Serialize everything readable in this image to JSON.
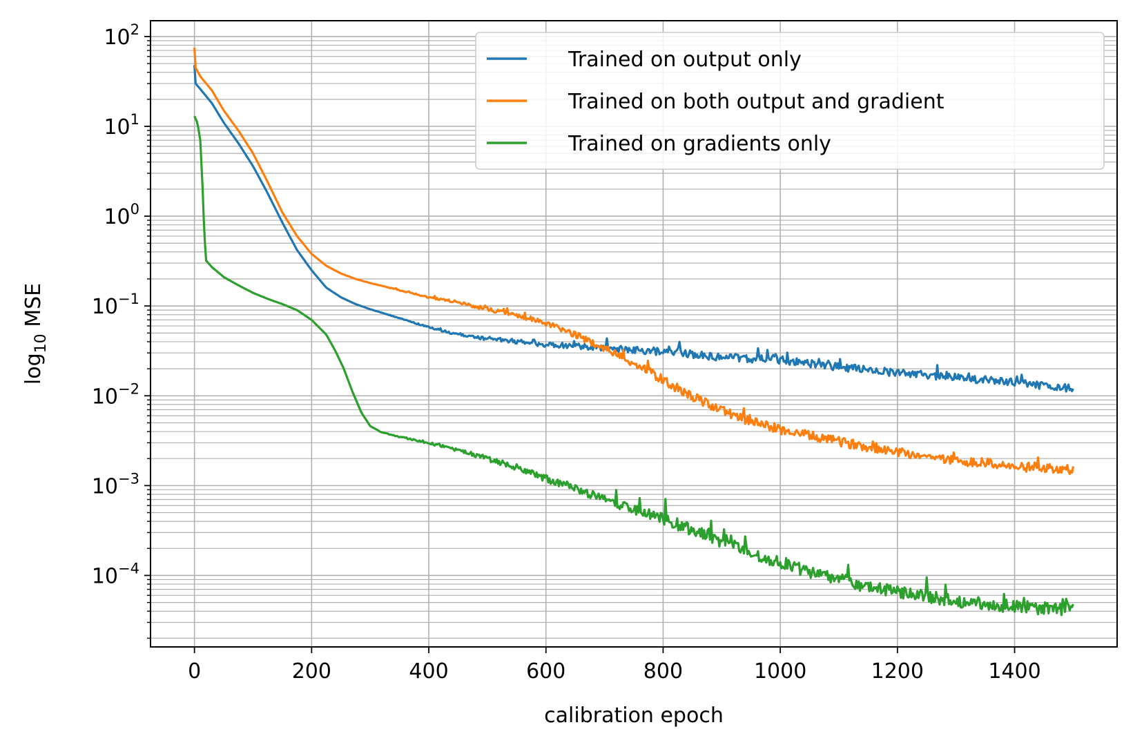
{
  "chart_data": {
    "type": "line",
    "title": "",
    "xlabel": "calibration epoch",
    "ylabel": "log10 MSE",
    "ylabel_parts": {
      "base": "log",
      "subscript": "10",
      "rest": " MSE"
    },
    "y_scale": "log",
    "xlim": [
      -75,
      1575
    ],
    "ylim": [
      1.6e-05,
      150
    ],
    "x_ticks": [
      0,
      200,
      400,
      600,
      800,
      1000,
      1200,
      1400
    ],
    "x_tick_labels": [
      "0",
      "200",
      "400",
      "600",
      "800",
      "1000",
      "1200",
      "1400"
    ],
    "y_ticks": [
      {
        "value": 100,
        "base": "10",
        "exp": "2"
      },
      {
        "value": 10,
        "base": "10",
        "exp": "1"
      },
      {
        "value": 1,
        "base": "10",
        "exp": "0"
      },
      {
        "value": 0.1,
        "base": "10",
        "exp": "−1"
      },
      {
        "value": 0.01,
        "base": "10",
        "exp": "−2"
      },
      {
        "value": 0.001,
        "base": "10",
        "exp": "−3"
      },
      {
        "value": 0.0001,
        "base": "10",
        "exp": "−4"
      }
    ],
    "grid": "major and minor",
    "legend_position": "upper right",
    "series": [
      {
        "name": "Trained on output only",
        "color": "#1f77b4",
        "noise": 0.1,
        "points": [
          [
            0,
            48
          ],
          [
            2,
            30
          ],
          [
            10,
            26
          ],
          [
            30,
            18
          ],
          [
            50,
            11
          ],
          [
            75,
            6.5
          ],
          [
            100,
            3.6
          ],
          [
            125,
            1.8
          ],
          [
            150,
            0.85
          ],
          [
            175,
            0.42
          ],
          [
            200,
            0.25
          ],
          [
            225,
            0.16
          ],
          [
            250,
            0.125
          ],
          [
            275,
            0.105
          ],
          [
            300,
            0.092
          ],
          [
            350,
            0.073
          ],
          [
            400,
            0.058
          ],
          [
            450,
            0.048
          ],
          [
            500,
            0.043
          ],
          [
            550,
            0.04
          ],
          [
            600,
            0.037
          ],
          [
            650,
            0.036
          ],
          [
            700,
            0.034
          ],
          [
            800,
            0.031
          ],
          [
            900,
            0.027
          ],
          [
            1000,
            0.025
          ],
          [
            1100,
            0.021
          ],
          [
            1200,
            0.018
          ],
          [
            1300,
            0.016
          ],
          [
            1400,
            0.014
          ],
          [
            1500,
            0.012
          ]
        ]
      },
      {
        "name": "Trained on both output and gradient",
        "color": "#ff7f0e",
        "noise": 0.12,
        "points": [
          [
            0,
            75
          ],
          [
            2,
            45
          ],
          [
            10,
            36
          ],
          [
            30,
            25
          ],
          [
            50,
            15
          ],
          [
            75,
            9
          ],
          [
            100,
            5
          ],
          [
            125,
            2.4
          ],
          [
            150,
            1.1
          ],
          [
            175,
            0.6
          ],
          [
            200,
            0.38
          ],
          [
            225,
            0.28
          ],
          [
            250,
            0.23
          ],
          [
            275,
            0.2
          ],
          [
            300,
            0.18
          ],
          [
            350,
            0.15
          ],
          [
            400,
            0.125
          ],
          [
            450,
            0.11
          ],
          [
            500,
            0.092
          ],
          [
            550,
            0.078
          ],
          [
            600,
            0.064
          ],
          [
            650,
            0.048
          ],
          [
            700,
            0.034
          ],
          [
            750,
            0.023
          ],
          [
            800,
            0.015
          ],
          [
            850,
            0.0098
          ],
          [
            900,
            0.0068
          ],
          [
            950,
            0.0052
          ],
          [
            1000,
            0.0042
          ],
          [
            1050,
            0.0036
          ],
          [
            1100,
            0.0031
          ],
          [
            1150,
            0.0027
          ],
          [
            1200,
            0.0024
          ],
          [
            1250,
            0.0021
          ],
          [
            1300,
            0.0019
          ],
          [
            1350,
            0.0018
          ],
          [
            1400,
            0.0016
          ],
          [
            1450,
            0.0016
          ],
          [
            1500,
            0.0015
          ]
        ]
      },
      {
        "name": "Trained on gradients only",
        "color": "#2ca02c",
        "noise": 0.16,
        "points": [
          [
            0,
            13
          ],
          [
            5,
            11
          ],
          [
            10,
            7
          ],
          [
            14,
            2
          ],
          [
            17,
            0.6
          ],
          [
            20,
            0.32
          ],
          [
            30,
            0.27
          ],
          [
            50,
            0.21
          ],
          [
            75,
            0.17
          ],
          [
            100,
            0.14
          ],
          [
            125,
            0.12
          ],
          [
            150,
            0.105
          ],
          [
            175,
            0.09
          ],
          [
            200,
            0.07
          ],
          [
            225,
            0.048
          ],
          [
            240,
            0.032
          ],
          [
            255,
            0.02
          ],
          [
            270,
            0.011
          ],
          [
            285,
            0.0065
          ],
          [
            300,
            0.0046
          ],
          [
            320,
            0.0039
          ],
          [
            350,
            0.0035
          ],
          [
            400,
            0.003
          ],
          [
            450,
            0.0025
          ],
          [
            500,
            0.002
          ],
          [
            550,
            0.0016
          ],
          [
            600,
            0.0012
          ],
          [
            650,
            0.00095
          ],
          [
            700,
            0.0007
          ],
          [
            750,
            0.00056
          ],
          [
            800,
            0.00042
          ],
          [
            850,
            0.00032
          ],
          [
            900,
            0.00024
          ],
          [
            950,
            0.00018
          ],
          [
            1000,
            0.00014
          ],
          [
            1050,
            0.00011
          ],
          [
            1100,
            9e-05
          ],
          [
            1150,
            7.5e-05
          ],
          [
            1200,
            6.5e-05
          ],
          [
            1250,
            5.8e-05
          ],
          [
            1300,
            5.2e-05
          ],
          [
            1350,
            4.8e-05
          ],
          [
            1400,
            4.5e-05
          ],
          [
            1450,
            4.3e-05
          ],
          [
            1500,
            4.2e-05
          ]
        ]
      }
    ]
  }
}
